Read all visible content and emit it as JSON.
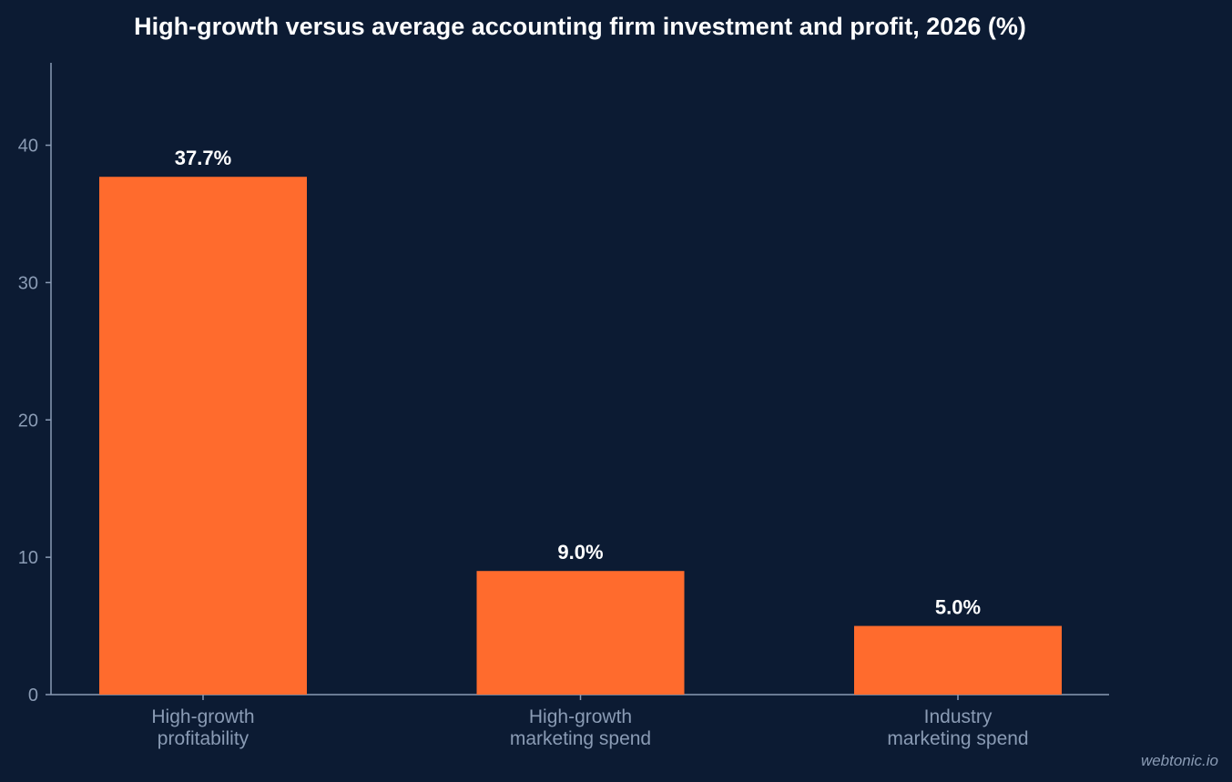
{
  "colors": {
    "background": "#0c1b33",
    "bar": "#ff6b2d",
    "title": "#ffffff",
    "value_label": "#ffffff",
    "tick_label": "#8a9bb4",
    "category_label": "#8a9bb4",
    "axis": "#8a9bb4",
    "watermark": "#8a9bb4"
  },
  "watermark": "webtonic.io",
  "chart_data": {
    "type": "bar",
    "title": "High-growth versus average accounting firm investment and profit, 2026 (%)",
    "xlabel": "",
    "ylabel": "",
    "categories": [
      [
        "High-growth",
        "profitability"
      ],
      [
        "High-growth",
        "marketing spend"
      ],
      [
        "Industry",
        "marketing spend"
      ]
    ],
    "values": [
      37.7,
      9.0,
      5.0
    ],
    "value_labels": [
      "37.7%",
      "9.0%",
      "5.0%"
    ],
    "ylim": [
      0,
      46
    ],
    "yticks": [
      0,
      10,
      20,
      30,
      40
    ],
    "ytick_labels": [
      "0",
      "10",
      "20",
      "30",
      "40"
    ],
    "grid": false,
    "legend": "none"
  }
}
